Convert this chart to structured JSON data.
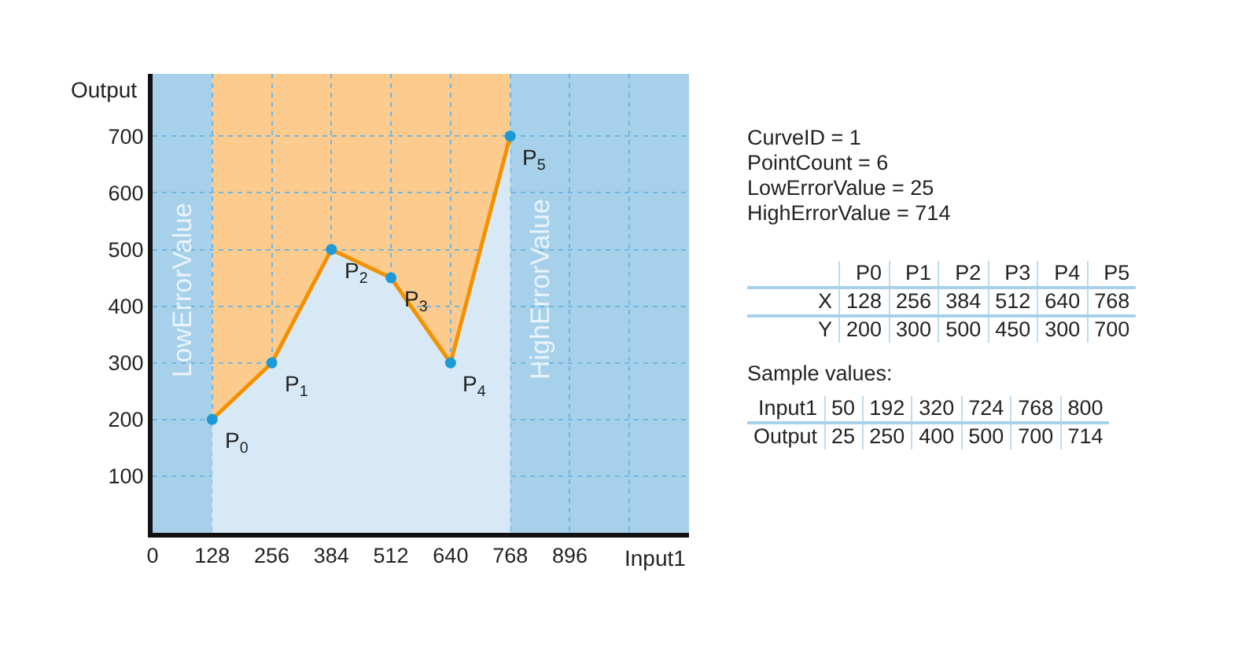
{
  "chart_data": {
    "type": "area",
    "xlabel": "Input1",
    "ylabel": "Output",
    "x": [
      128,
      256,
      384,
      512,
      640,
      768
    ],
    "series": [
      {
        "color": "#f39200",
        "values": [
          200,
          300,
          500,
          450,
          300,
          700
        ]
      }
    ],
    "xlim": [
      0,
      1152
    ],
    "xticks": [
      0,
      128,
      256,
      384,
      512,
      640,
      768,
      896,
      {
        "value": 1024,
        "label": null
      }
    ],
    "ylim": [
      0,
      810
    ],
    "yticks": [
      100,
      200,
      300,
      400,
      500,
      600,
      700
    ],
    "grid": true,
    "legend": false,
    "marker": "circle",
    "line_style": "solid",
    "bands": [
      {
        "axis": "x",
        "from": 0,
        "to": 128,
        "label": "LowErrorValue",
        "color": "#a7d1ea"
      },
      {
        "axis": "x",
        "from": 128,
        "to": 768,
        "color": "#fdcb8d"
      },
      {
        "axis": "x",
        "from": 768,
        "to": 1152,
        "label": "HighErrorValue",
        "color": "#a7d1ea"
      }
    ],
    "annotations": [
      {
        "text": "P$_{0}$",
        "x": 128,
        "y": 200
      },
      {
        "text": "P$_{1}$",
        "x": 256,
        "y": 300
      },
      {
        "text": "P$_{2}$",
        "x": 384,
        "y": 500
      },
      {
        "text": "P$_{3}$",
        "x": 512,
        "y": 450
      },
      {
        "text": "P$_{4}$",
        "x": 640,
        "y": 300
      },
      {
        "text": "P$_{5}$",
        "x": 768,
        "y": 700
      },
      "CurveID = 1",
      "PointCount = 6",
      "LowErrorValue = 25",
      "HighErrorValue = 714",
      "P0",
      "P1",
      "P2",
      "P3",
      "P4",
      "P5",
      "X",
      "128",
      "256",
      "384",
      "512",
      "640",
      "768",
      "Y",
      "200",
      "300",
      "500",
      "450",
      "300",
      "700",
      "Sample values:",
      "Input1",
      "50",
      "192",
      "320",
      "724",
      "768",
      "800",
      "Output",
      "25",
      "250",
      "400",
      "500",
      "700",
      "714"
    ]
  }
}
